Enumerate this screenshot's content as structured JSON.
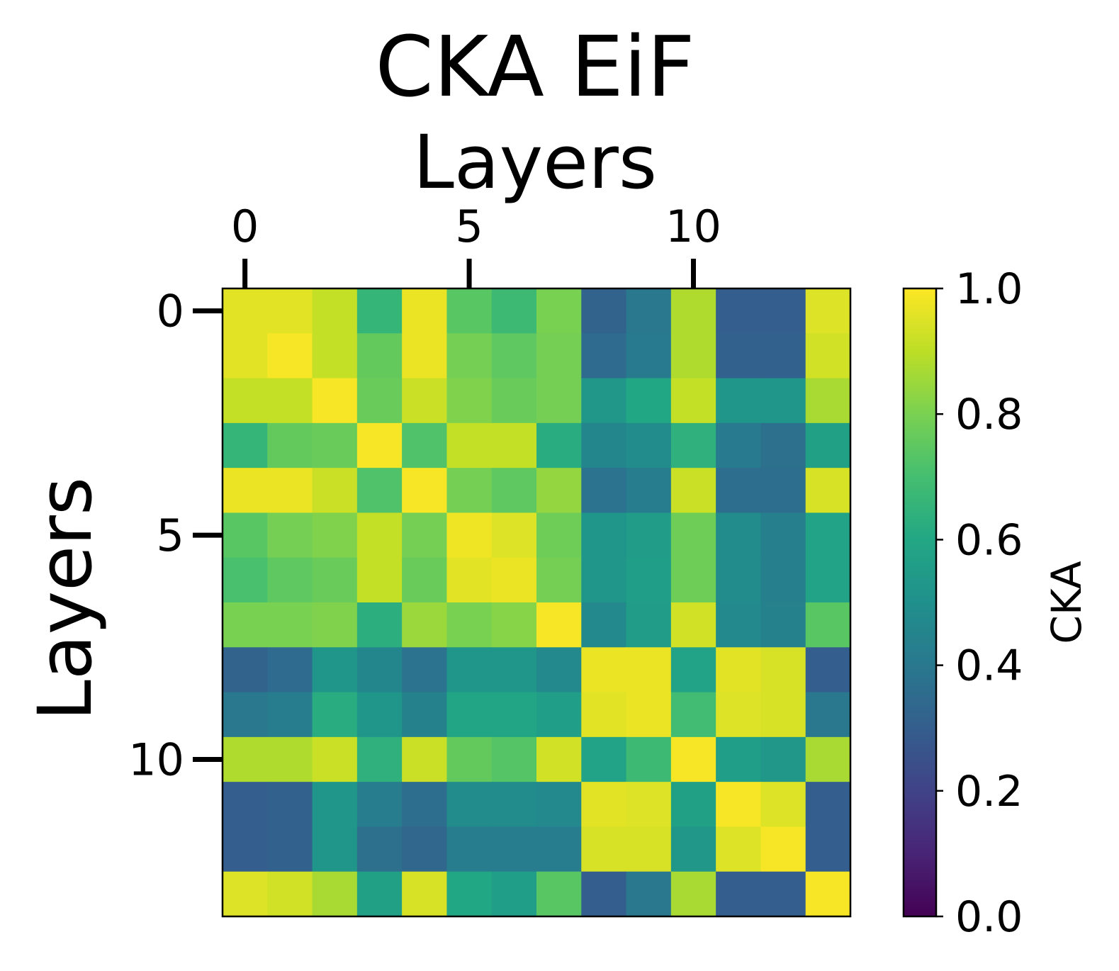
{
  "chart_data": {
    "type": "heatmap",
    "title": "CKA EiF",
    "xlabel": "Layers",
    "ylabel": "Layers",
    "x_ticks": [
      0,
      5,
      10
    ],
    "y_ticks": [
      0,
      5,
      10
    ],
    "n_rows": 14,
    "n_cols": 14,
    "colormap": "viridis",
    "colorbar": {
      "label": "CKA",
      "range": [
        0.0,
        1.0
      ],
      "ticks": [
        "0.0",
        "0.2",
        "0.4",
        "0.6",
        "0.8",
        "1.0"
      ]
    },
    "matrix": [
      [
        0.96,
        0.96,
        0.91,
        0.66,
        0.97,
        0.74,
        0.68,
        0.8,
        0.32,
        0.4,
        0.88,
        0.3,
        0.3,
        0.95
      ],
      [
        0.96,
        0.99,
        0.91,
        0.76,
        0.97,
        0.79,
        0.75,
        0.79,
        0.35,
        0.41,
        0.88,
        0.31,
        0.31,
        0.93
      ],
      [
        0.91,
        0.91,
        0.99,
        0.77,
        0.92,
        0.81,
        0.77,
        0.79,
        0.53,
        0.6,
        0.91,
        0.52,
        0.52,
        0.87
      ],
      [
        0.66,
        0.76,
        0.77,
        0.99,
        0.72,
        0.91,
        0.91,
        0.62,
        0.46,
        0.48,
        0.64,
        0.41,
        0.37,
        0.57
      ],
      [
        0.97,
        0.97,
        0.92,
        0.72,
        0.99,
        0.79,
        0.75,
        0.84,
        0.38,
        0.42,
        0.92,
        0.36,
        0.36,
        0.94
      ],
      [
        0.74,
        0.79,
        0.81,
        0.91,
        0.79,
        0.98,
        0.95,
        0.78,
        0.52,
        0.55,
        0.78,
        0.48,
        0.43,
        0.58
      ],
      [
        0.71,
        0.75,
        0.77,
        0.91,
        0.77,
        0.96,
        0.97,
        0.79,
        0.52,
        0.56,
        0.78,
        0.48,
        0.43,
        0.58
      ],
      [
        0.8,
        0.8,
        0.81,
        0.63,
        0.85,
        0.8,
        0.82,
        0.99,
        0.47,
        0.55,
        0.93,
        0.47,
        0.44,
        0.74
      ],
      [
        0.32,
        0.35,
        0.52,
        0.46,
        0.38,
        0.52,
        0.52,
        0.47,
        0.97,
        0.97,
        0.58,
        0.96,
        0.94,
        0.3
      ],
      [
        0.4,
        0.42,
        0.62,
        0.52,
        0.44,
        0.59,
        0.59,
        0.56,
        0.96,
        0.97,
        0.69,
        0.95,
        0.94,
        0.4
      ],
      [
        0.88,
        0.88,
        0.92,
        0.64,
        0.92,
        0.76,
        0.73,
        0.93,
        0.58,
        0.68,
        0.99,
        0.56,
        0.53,
        0.87
      ],
      [
        0.3,
        0.31,
        0.52,
        0.42,
        0.36,
        0.48,
        0.48,
        0.47,
        0.96,
        0.95,
        0.57,
        0.99,
        0.95,
        0.3
      ],
      [
        0.3,
        0.31,
        0.52,
        0.37,
        0.33,
        0.42,
        0.42,
        0.42,
        0.94,
        0.94,
        0.53,
        0.95,
        0.99,
        0.3
      ],
      [
        0.95,
        0.93,
        0.87,
        0.57,
        0.94,
        0.6,
        0.56,
        0.74,
        0.3,
        0.4,
        0.87,
        0.3,
        0.3,
        0.99
      ]
    ]
  }
}
